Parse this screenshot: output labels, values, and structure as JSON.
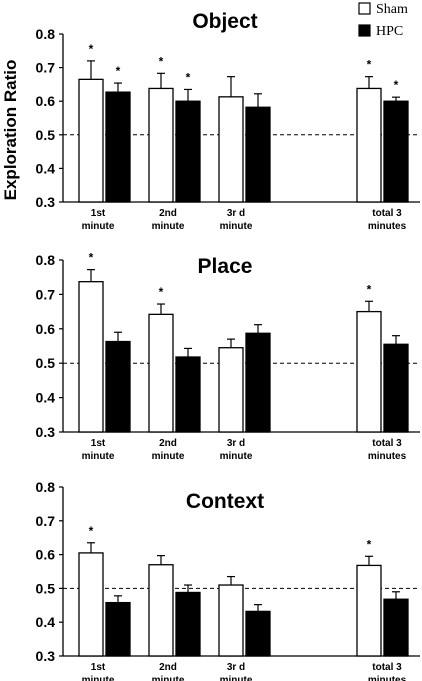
{
  "shared": {
    "ylabel": "Exploration Ratio",
    "legend": [
      {
        "name": "Sham",
        "fill": "#ffffff"
      },
      {
        "name": "HPC",
        "fill": "#000000"
      }
    ],
    "reference_line": 0.5,
    "colors": {
      "sham": "#ffffff",
      "hpc": "#000000",
      "stroke": "#000000"
    }
  },
  "chart_data": [
    {
      "type": "bar",
      "title": "Object",
      "categories": [
        [
          "1st",
          "minute"
        ],
        [
          "2nd",
          "minute"
        ],
        [
          "3r d",
          "minute"
        ],
        [
          "total  3",
          "minutes"
        ]
      ],
      "ylim": [
        0.3,
        0.8
      ],
      "yticks": [
        "0.3",
        "0.4",
        "0.5",
        "0.6",
        "0.7",
        "0.8"
      ],
      "series": [
        {
          "name": "Sham",
          "values": [
            0.665,
            0.638,
            0.613,
            0.638
          ],
          "errors": [
            0.055,
            0.045,
            0.06,
            0.035
          ],
          "significant": [
            true,
            true,
            false,
            true
          ]
        },
        {
          "name": "HPC",
          "values": [
            0.627,
            0.6,
            0.582,
            0.6
          ],
          "errors": [
            0.027,
            0.035,
            0.04,
            0.012
          ],
          "significant": [
            true,
            true,
            false,
            true
          ]
        }
      ]
    },
    {
      "type": "bar",
      "title": "Place",
      "categories": [
        [
          "1st",
          "minute"
        ],
        [
          "2nd",
          "minute"
        ],
        [
          "3r d",
          "minute"
        ],
        [
          "total  3",
          "minutes"
        ]
      ],
      "ylim": [
        0.3,
        0.8
      ],
      "yticks": [
        "0.3",
        "0.4",
        "0.5",
        "0.6",
        "0.7",
        "0.8"
      ],
      "series": [
        {
          "name": "Sham",
          "values": [
            0.737,
            0.642,
            0.545,
            0.65
          ],
          "errors": [
            0.035,
            0.03,
            0.025,
            0.03
          ],
          "significant": [
            true,
            true,
            false,
            true
          ]
        },
        {
          "name": "HPC",
          "values": [
            0.563,
            0.518,
            0.587,
            0.555
          ],
          "errors": [
            0.027,
            0.025,
            0.025,
            0.025
          ],
          "significant": [
            false,
            false,
            false,
            false
          ]
        }
      ]
    },
    {
      "type": "bar",
      "title": "Context",
      "categories": [
        [
          "1st",
          "minute"
        ],
        [
          "2nd",
          "minute"
        ],
        [
          "3r d",
          "minute"
        ],
        [
          "total  3",
          "minutes"
        ]
      ],
      "ylim": [
        0.3,
        0.8
      ],
      "yticks": [
        "0.3",
        "0.4",
        "0.5",
        "0.6",
        "0.7",
        "0.8"
      ],
      "series": [
        {
          "name": "Sham",
          "values": [
            0.605,
            0.57,
            0.51,
            0.568
          ],
          "errors": [
            0.03,
            0.027,
            0.025,
            0.027
          ],
          "significant": [
            true,
            false,
            false,
            true
          ]
        },
        {
          "name": "HPC",
          "values": [
            0.458,
            0.488,
            0.432,
            0.468
          ],
          "errors": [
            0.02,
            0.022,
            0.02,
            0.022
          ],
          "significant": [
            false,
            false,
            false,
            false
          ]
        }
      ]
    }
  ]
}
